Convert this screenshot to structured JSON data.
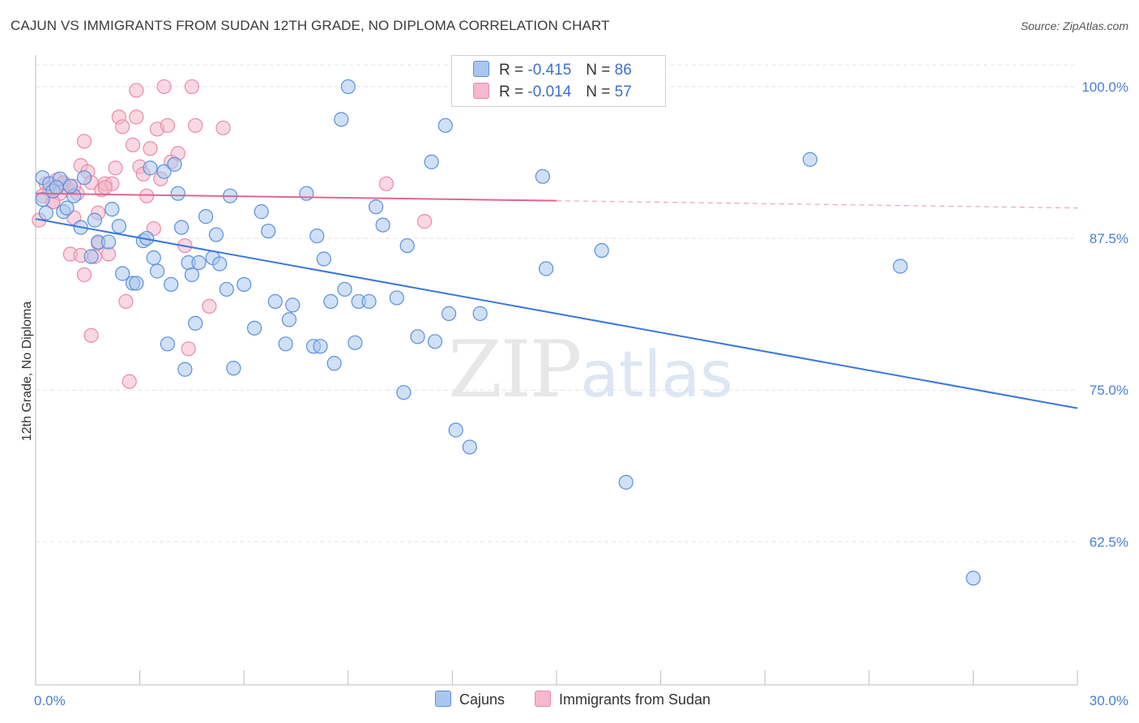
{
  "header": {
    "title": "CAJUN VS IMMIGRANTS FROM SUDAN 12TH GRADE, NO DIPLOMA CORRELATION CHART",
    "source": "Source: ZipAtlas.com"
  },
  "watermark": {
    "zip": "ZIP",
    "atlas": "atlas"
  },
  "legend": {
    "rows": [
      {
        "r_label": "R =",
        "r_value": "-0.415",
        "n_label": "N =",
        "n_value": "86"
      },
      {
        "r_label": "R =",
        "r_value": "-0.014",
        "n_label": "N =",
        "n_value": "57"
      }
    ]
  },
  "bottom_legend": {
    "cajuns": "Cajuns",
    "sudan": "Immigrants from Sudan"
  },
  "colors": {
    "cajuns_fill": "#a9c6ee",
    "cajuns_stroke": "#5b8fdc",
    "cajuns_line": "#3a78d8",
    "sudan_fill": "#f6b8cb",
    "sudan_stroke": "#e98aa8",
    "sudan_line": "#e4648f",
    "tick_label": "#4a7fd0",
    "grid": "#e4e4e4"
  },
  "chart_data": {
    "type": "scatter",
    "title": "CAJUN VS IMMIGRANTS FROM SUDAN 12TH GRADE, NO DIPLOMA CORRELATION CHART",
    "xlabel": "",
    "ylabel": "12th Grade, No Diploma",
    "xlim": [
      0,
      30
    ],
    "ylim": [
      50.7,
      102.6
    ],
    "x_tick_labels": [
      "0.0%",
      "30.0%"
    ],
    "y_ticks": [
      100,
      87.5,
      75,
      62.5
    ],
    "y_tick_labels": [
      "100.0%",
      "87.5%",
      "75.0%",
      "62.5%"
    ],
    "grid": true,
    "legend_position": "top-center",
    "series": [
      {
        "name": "Cajuns",
        "r": -0.415,
        "n": 86,
        "trend": {
          "x": [
            0,
            30
          ],
          "y": [
            89.1,
            73.5
          ],
          "dashed_from": null
        },
        "points": [
          [
            0.2,
            92.5
          ],
          [
            0.3,
            89.6
          ],
          [
            0.4,
            92.0
          ],
          [
            0.5,
            91.4
          ],
          [
            0.7,
            92.4
          ],
          [
            0.8,
            89.7
          ],
          [
            0.9,
            90.0
          ],
          [
            1.1,
            91.0
          ],
          [
            1.3,
            88.4
          ],
          [
            1.4,
            92.5
          ],
          [
            1.6,
            86.0
          ],
          [
            1.7,
            89.0
          ],
          [
            1.8,
            87.2
          ],
          [
            2.1,
            87.2
          ],
          [
            2.2,
            89.9
          ],
          [
            2.4,
            88.5
          ],
          [
            2.5,
            84.6
          ],
          [
            2.8,
            83.8
          ],
          [
            2.9,
            83.8
          ],
          [
            3.1,
            87.3
          ],
          [
            3.2,
            87.5
          ],
          [
            3.3,
            93.3
          ],
          [
            3.4,
            85.9
          ],
          [
            3.5,
            84.8
          ],
          [
            3.7,
            93.0
          ],
          [
            3.8,
            78.8
          ],
          [
            3.9,
            83.7
          ],
          [
            4.0,
            93.6
          ],
          [
            4.1,
            91.2
          ],
          [
            4.2,
            88.4
          ],
          [
            4.3,
            76.7
          ],
          [
            4.4,
            85.5
          ],
          [
            4.5,
            84.5
          ],
          [
            4.6,
            80.5
          ],
          [
            4.7,
            85.5
          ],
          [
            4.9,
            89.3
          ],
          [
            5.1,
            85.9
          ],
          [
            5.2,
            87.8
          ],
          [
            5.3,
            85.4
          ],
          [
            5.5,
            83.3
          ],
          [
            5.6,
            91.0
          ],
          [
            5.7,
            76.8
          ],
          [
            6.0,
            83.7
          ],
          [
            6.3,
            80.1
          ],
          [
            6.5,
            89.7
          ],
          [
            6.7,
            88.1
          ],
          [
            6.9,
            82.3
          ],
          [
            7.2,
            78.8
          ],
          [
            7.3,
            80.8
          ],
          [
            7.4,
            82.0
          ],
          [
            7.8,
            91.2
          ],
          [
            8.0,
            78.6
          ],
          [
            8.1,
            87.7
          ],
          [
            8.2,
            78.6
          ],
          [
            8.3,
            85.8
          ],
          [
            8.5,
            82.3
          ],
          [
            8.6,
            77.2
          ],
          [
            8.8,
            97.3
          ],
          [
            8.9,
            83.3
          ],
          [
            9.0,
            100.0
          ],
          [
            9.2,
            78.9
          ],
          [
            9.3,
            82.3
          ],
          [
            9.6,
            82.3
          ],
          [
            9.8,
            90.1
          ],
          [
            10.0,
            88.6
          ],
          [
            10.4,
            82.6
          ],
          [
            10.6,
            74.8
          ],
          [
            10.7,
            86.9
          ],
          [
            11.0,
            79.4
          ],
          [
            11.4,
            93.8
          ],
          [
            11.5,
            79.0
          ],
          [
            11.8,
            96.8
          ],
          [
            11.9,
            81.3
          ],
          [
            12.1,
            71.7
          ],
          [
            12.5,
            70.3
          ],
          [
            12.8,
            81.3
          ],
          [
            14.6,
            92.6
          ],
          [
            14.7,
            85.0
          ],
          [
            16.3,
            86.5
          ],
          [
            17.0,
            67.4
          ],
          [
            22.3,
            94.0
          ],
          [
            24.9,
            85.2
          ],
          [
            27.0,
            59.5
          ],
          [
            0.2,
            90.7
          ],
          [
            0.6,
            91.7
          ],
          [
            1.0,
            91.8
          ]
        ]
      },
      {
        "name": "Immigrants from Sudan",
        "r": -0.014,
        "n": 57,
        "trend": {
          "x": [
            0,
            30
          ],
          "y": [
            91.2,
            90.0
          ],
          "dashed_from": 15.0
        },
        "points": [
          [
            0.1,
            89.0
          ],
          [
            0.2,
            91.0
          ],
          [
            0.3,
            92.0
          ],
          [
            0.4,
            91.5
          ],
          [
            0.5,
            90.5
          ],
          [
            0.6,
            92.3
          ],
          [
            0.7,
            91.2
          ],
          [
            0.8,
            92.0
          ],
          [
            0.9,
            91.7
          ],
          [
            1.0,
            86.2
          ],
          [
            1.1,
            89.2
          ],
          [
            1.2,
            91.2
          ],
          [
            1.3,
            93.5
          ],
          [
            1.4,
            95.5
          ],
          [
            1.5,
            93.0
          ],
          [
            1.6,
            92.1
          ],
          [
            1.7,
            86.0
          ],
          [
            1.8,
            87.1
          ],
          [
            1.9,
            91.5
          ],
          [
            2.0,
            92.0
          ],
          [
            2.1,
            86.2
          ],
          [
            2.2,
            92.0
          ],
          [
            2.3,
            93.3
          ],
          [
            2.4,
            97.5
          ],
          [
            2.5,
            96.7
          ],
          [
            2.6,
            82.3
          ],
          [
            2.7,
            75.7
          ],
          [
            2.8,
            95.2
          ],
          [
            2.9,
            97.5
          ],
          [
            3.0,
            93.4
          ],
          [
            3.1,
            92.8
          ],
          [
            3.2,
            91.0
          ],
          [
            3.3,
            94.9
          ],
          [
            3.4,
            88.3
          ],
          [
            3.5,
            96.5
          ],
          [
            3.6,
            92.4
          ],
          [
            3.7,
            100.0
          ],
          [
            3.8,
            96.8
          ],
          [
            3.9,
            93.8
          ],
          [
            4.1,
            94.5
          ],
          [
            4.3,
            86.9
          ],
          [
            4.4,
            78.4
          ],
          [
            4.5,
            100.0
          ],
          [
            4.6,
            96.8
          ],
          [
            5.0,
            81.9
          ],
          [
            1.4,
            84.5
          ],
          [
            1.6,
            79.5
          ],
          [
            1.8,
            89.6
          ],
          [
            2.9,
            99.7
          ],
          [
            5.4,
            96.6
          ],
          [
            10.1,
            92.0
          ],
          [
            11.2,
            88.9
          ],
          [
            0.5,
            90.5
          ],
          [
            0.8,
            92.1
          ],
          [
            1.1,
            91.8
          ],
          [
            1.3,
            86.1
          ],
          [
            2.0,
            91.7
          ]
        ]
      }
    ]
  }
}
